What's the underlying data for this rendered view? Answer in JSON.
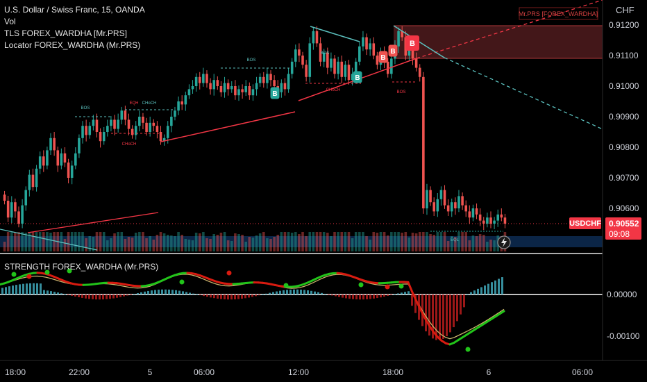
{
  "header": {
    "symbol_line": "U.S. Dollar / Swiss Franc, 15, OANDA",
    "indicators": [
      "Vol",
      "TLS FOREX_WARDHA [Mr.PRS]",
      "Locator FOREX_WARDHA (Mr.PRS)"
    ],
    "watermark_tag": "Mr.PRS [FOREX_WARDHA]",
    "currency": "CHF"
  },
  "price_badge": {
    "ticker": "USDCHF",
    "price": "0.90552",
    "countdown": "09:08"
  },
  "lower_pane": {
    "title": "STRENGTH FOREX_WARDHA (Mr.PRS)"
  },
  "colors": {
    "up": "#26a69a",
    "down": "#ef5350",
    "accent_red": "#f23645",
    "teal_zone": "#5bc0be",
    "macd_green": "#22c41a",
    "macd_red": "#d81b10",
    "signal": "#c9b26b",
    "bg": "#000000"
  },
  "chart_data": [
    {
      "type": "candlestick",
      "title": "U.S. Dollar / Swiss Franc, 15, OANDA",
      "x_tick_labels": [
        "18:00",
        "22:00",
        "5",
        "06:00",
        "12:00",
        "18:00",
        "6",
        "06:00"
      ],
      "y_tick_labels": [
        "0.91200",
        "0.91100",
        "0.91000",
        "0.90900",
        "0.90800",
        "0.90700",
        "0.90600"
      ],
      "ylim": [
        0.9051,
        0.9122
      ],
      "last_price": 0.90552,
      "series": [
        {
          "name": "USDCHF",
          "closes": [
            0.90625,
            0.9057,
            0.9062,
            0.9059,
            0.9055,
            0.9061,
            0.9066,
            0.9071,
            0.9067,
            0.9073,
            0.9077,
            0.9074,
            0.9079,
            0.9083,
            0.9079,
            0.9074,
            0.9078,
            0.9075,
            0.907,
            0.9074,
            0.9078,
            0.9083,
            0.9087,
            0.9084,
            0.9087,
            0.9089,
            0.9085,
            0.9082,
            0.9085,
            0.9087,
            0.9089,
            0.9086,
            0.9089,
            0.9092,
            0.9089,
            0.9086,
            0.9084,
            0.9087,
            0.909,
            0.9088,
            0.9085,
            0.9088,
            0.9087,
            0.9085,
            0.9082,
            0.9083,
            0.9087,
            0.909,
            0.9092,
            0.9095,
            0.9094,
            0.9097,
            0.9099,
            0.91,
            0.9103,
            0.9101,
            0.9104,
            0.9101,
            0.9099,
            0.9102,
            0.91,
            0.9098,
            0.9101,
            0.9099,
            0.91,
            0.9097,
            0.9099,
            0.9098,
            0.91,
            0.9097,
            0.9099,
            0.9101,
            0.9103,
            0.9101,
            0.9104,
            0.9102,
            0.91,
            0.9098,
            0.9101,
            0.9099,
            0.9104,
            0.9108,
            0.9112,
            0.911,
            0.9107,
            0.9103,
            0.9114,
            0.9118,
            0.9114,
            0.9108,
            0.9111,
            0.9106,
            0.9109,
            0.9104,
            0.9108,
            0.9103,
            0.9107,
            0.9102,
            0.9104,
            0.9108,
            0.9113,
            0.9116,
            0.9112,
            0.9114,
            0.911,
            0.9107,
            0.9111,
            0.9108,
            0.9104,
            0.9109,
            0.9113,
            0.9118,
            0.9116,
            0.911,
            0.9113,
            0.9109,
            0.9106,
            0.9103,
            0.906,
            0.9066,
            0.9062,
            0.9059,
            0.9063,
            0.9066,
            0.9061,
            0.9059,
            0.9062,
            0.906,
            0.9064,
            0.9061,
            0.9059,
            0.9057,
            0.906,
            0.9058,
            0.9056,
            0.9055,
            0.9057,
            0.9055,
            0.9056,
            0.9058,
            0.9057,
            0.9055
          ]
        }
      ],
      "annotations": [
        "BOS",
        "EQH",
        "CHoCH",
        "BOS",
        "CHoCH",
        "BOS",
        "CHoCH",
        "BOS",
        "EQL"
      ],
      "signal_labels": [
        "B",
        "B",
        "B",
        "B",
        "B"
      ],
      "grid": false
    },
    {
      "type": "histogram_with_lines",
      "title": "STRENGTH FOREX_WARDHA (Mr.PRS)",
      "y_tick_labels": [
        "0.00000",
        "-0.00100"
      ],
      "ylim": [
        -0.0013,
        0.0005
      ],
      "zero_line": 0.0
    }
  ]
}
